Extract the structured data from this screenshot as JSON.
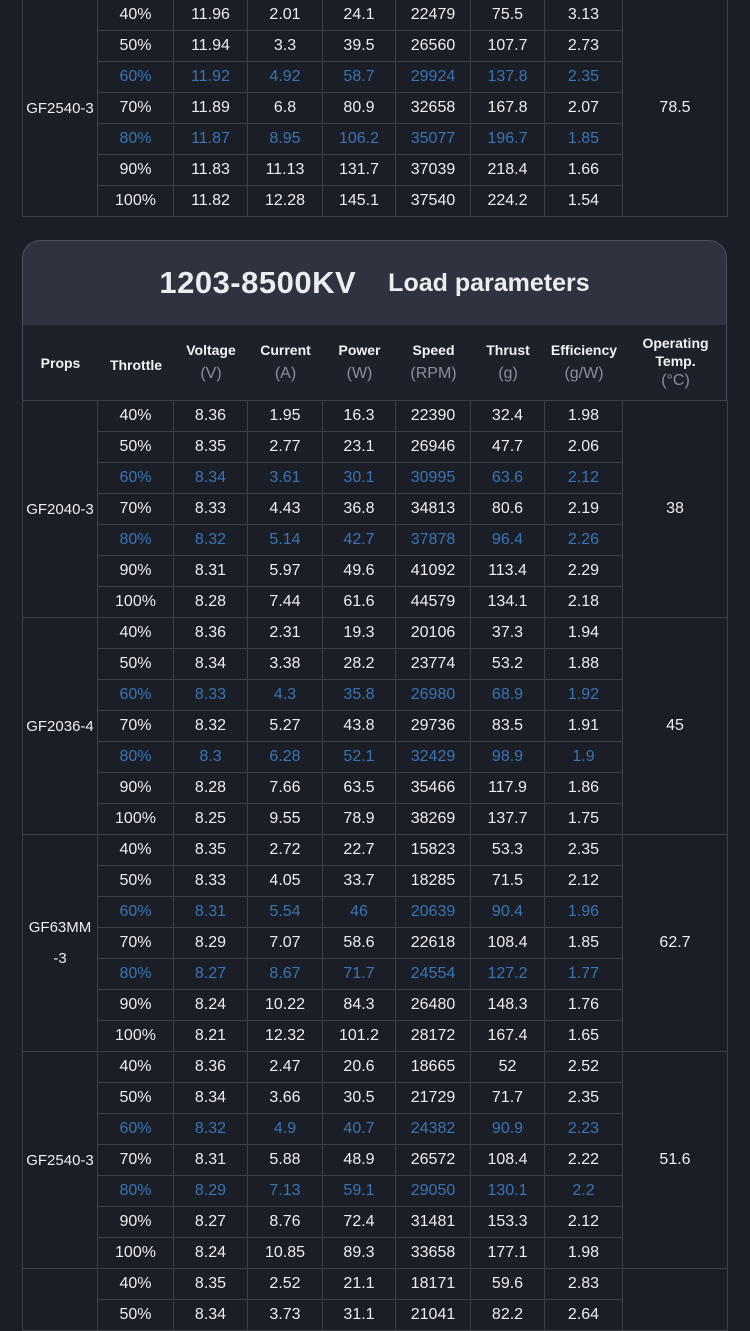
{
  "top_table": {
    "groups": [
      {
        "prop": "GF2540-3",
        "temp": "78.5",
        "rows": [
          {
            "throttle": "40%",
            "voltage": "11.96",
            "current": "2.01",
            "power": "24.1",
            "speed": "22479",
            "thrust": "75.5",
            "efficiency": "3.13",
            "hl": false
          },
          {
            "throttle": "50%",
            "voltage": "11.94",
            "current": "3.3",
            "power": "39.5",
            "speed": "26560",
            "thrust": "107.7",
            "efficiency": "2.73",
            "hl": false
          },
          {
            "throttle": "60%",
            "voltage": "11.92",
            "current": "4.92",
            "power": "58.7",
            "speed": "29924",
            "thrust": "137.8",
            "efficiency": "2.35",
            "hl": true
          },
          {
            "throttle": "70%",
            "voltage": "11.89",
            "current": "6.8",
            "power": "80.9",
            "speed": "32658",
            "thrust": "167.8",
            "efficiency": "2.07",
            "hl": false
          },
          {
            "throttle": "80%",
            "voltage": "11.87",
            "current": "8.95",
            "power": "106.2",
            "speed": "35077",
            "thrust": "196.7",
            "efficiency": "1.85",
            "hl": true
          },
          {
            "throttle": "90%",
            "voltage": "11.83",
            "current": "11.13",
            "power": "131.7",
            "speed": "37039",
            "thrust": "218.4",
            "efficiency": "1.66",
            "hl": false
          },
          {
            "throttle": "100%",
            "voltage": "11.82",
            "current": "12.28",
            "power": "145.1",
            "speed": "37540",
            "thrust": "224.2",
            "efficiency": "1.54",
            "hl": false
          }
        ]
      }
    ]
  },
  "panel": {
    "model": "1203-8500KV",
    "label": "Load parameters"
  },
  "columns": {
    "props": {
      "label": "Props",
      "unit": ""
    },
    "throttle": {
      "label": "Throttle",
      "unit": ""
    },
    "voltage": {
      "label": "Voltage",
      "unit": "(V)"
    },
    "current": {
      "label": "Current",
      "unit": "(A)"
    },
    "power": {
      "label": "Power",
      "unit": "(W)"
    },
    "speed": {
      "label": "Speed",
      "unit": "(RPM)"
    },
    "thrust": {
      "label": "Thrust",
      "unit": "(g)"
    },
    "efficiency": {
      "label": "Efficiency",
      "unit": "(g/W)"
    },
    "temp": {
      "label": "Operating Temp.",
      "unit": "(°C)"
    }
  },
  "main_table": {
    "groups": [
      {
        "prop": "GF2040-3",
        "temp": "38",
        "rows": [
          {
            "throttle": "40%",
            "voltage": "8.36",
            "current": "1.95",
            "power": "16.3",
            "speed": "22390",
            "thrust": "32.4",
            "efficiency": "1.98",
            "hl": false
          },
          {
            "throttle": "50%",
            "voltage": "8.35",
            "current": "2.77",
            "power": "23.1",
            "speed": "26946",
            "thrust": "47.7",
            "efficiency": "2.06",
            "hl": false
          },
          {
            "throttle": "60%",
            "voltage": "8.34",
            "current": "3.61",
            "power": "30.1",
            "speed": "30995",
            "thrust": "63.6",
            "efficiency": "2.12",
            "hl": true
          },
          {
            "throttle": "70%",
            "voltage": "8.33",
            "current": "4.43",
            "power": "36.8",
            "speed": "34813",
            "thrust": "80.6",
            "efficiency": "2.19",
            "hl": false
          },
          {
            "throttle": "80%",
            "voltage": "8.32",
            "current": "5.14",
            "power": "42.7",
            "speed": "37878",
            "thrust": "96.4",
            "efficiency": "2.26",
            "hl": true
          },
          {
            "throttle": "90%",
            "voltage": "8.31",
            "current": "5.97",
            "power": "49.6",
            "speed": "41092",
            "thrust": "113.4",
            "efficiency": "2.29",
            "hl": false
          },
          {
            "throttle": "100%",
            "voltage": "8.28",
            "current": "7.44",
            "power": "61.6",
            "speed": "44579",
            "thrust": "134.1",
            "efficiency": "2.18",
            "hl": false
          }
        ]
      },
      {
        "prop": "GF2036-4",
        "temp": "45",
        "rows": [
          {
            "throttle": "40%",
            "voltage": "8.36",
            "current": "2.31",
            "power": "19.3",
            "speed": "20106",
            "thrust": "37.3",
            "efficiency": "1.94",
            "hl": false
          },
          {
            "throttle": "50%",
            "voltage": "8.34",
            "current": "3.38",
            "power": "28.2",
            "speed": "23774",
            "thrust": "53.2",
            "efficiency": "1.88",
            "hl": false
          },
          {
            "throttle": "60%",
            "voltage": "8.33",
            "current": "4.3",
            "power": "35.8",
            "speed": "26980",
            "thrust": "68.9",
            "efficiency": "1.92",
            "hl": true
          },
          {
            "throttle": "70%",
            "voltage": "8.32",
            "current": "5.27",
            "power": "43.8",
            "speed": "29736",
            "thrust": "83.5",
            "efficiency": "1.91",
            "hl": false
          },
          {
            "throttle": "80%",
            "voltage": "8.3",
            "current": "6.28",
            "power": "52.1",
            "speed": "32429",
            "thrust": "98.9",
            "efficiency": "1.9",
            "hl": true
          },
          {
            "throttle": "90%",
            "voltage": "8.28",
            "current": "7.66",
            "power": "63.5",
            "speed": "35466",
            "thrust": "117.9",
            "efficiency": "1.86",
            "hl": false
          },
          {
            "throttle": "100%",
            "voltage": "8.25",
            "current": "9.55",
            "power": "78.9",
            "speed": "38269",
            "thrust": "137.7",
            "efficiency": "1.75",
            "hl": false
          }
        ]
      },
      {
        "prop": "GF63MM -3",
        "temp": "62.7",
        "rows": [
          {
            "throttle": "40%",
            "voltage": "8.35",
            "current": "2.72",
            "power": "22.7",
            "speed": "15823",
            "thrust": "53.3",
            "efficiency": "2.35",
            "hl": false
          },
          {
            "throttle": "50%",
            "voltage": "8.33",
            "current": "4.05",
            "power": "33.7",
            "speed": "18285",
            "thrust": "71.5",
            "efficiency": "2.12",
            "hl": false
          },
          {
            "throttle": "60%",
            "voltage": "8.31",
            "current": "5.54",
            "power": "46",
            "speed": "20639",
            "thrust": "90.4",
            "efficiency": "1.96",
            "hl": true
          },
          {
            "throttle": "70%",
            "voltage": "8.29",
            "current": "7.07",
            "power": "58.6",
            "speed": "22618",
            "thrust": "108.4",
            "efficiency": "1.85",
            "hl": false
          },
          {
            "throttle": "80%",
            "voltage": "8.27",
            "current": "8.67",
            "power": "71.7",
            "speed": "24554",
            "thrust": "127.2",
            "efficiency": "1.77",
            "hl": true
          },
          {
            "throttle": "90%",
            "voltage": "8.24",
            "current": "10.22",
            "power": "84.3",
            "speed": "26480",
            "thrust": "148.3",
            "efficiency": "1.76",
            "hl": false
          },
          {
            "throttle": "100%",
            "voltage": "8.21",
            "current": "12.32",
            "power": "101.2",
            "speed": "28172",
            "thrust": "167.4",
            "efficiency": "1.65",
            "hl": false
          }
        ]
      },
      {
        "prop": "GF2540-3",
        "temp": "51.6",
        "rows": [
          {
            "throttle": "40%",
            "voltage": "8.36",
            "current": "2.47",
            "power": "20.6",
            "speed": "18665",
            "thrust": "52",
            "efficiency": "2.52",
            "hl": false
          },
          {
            "throttle": "50%",
            "voltage": "8.34",
            "current": "3.66",
            "power": "30.5",
            "speed": "21729",
            "thrust": "71.7",
            "efficiency": "2.35",
            "hl": false
          },
          {
            "throttle": "60%",
            "voltage": "8.32",
            "current": "4.9",
            "power": "40.7",
            "speed": "24382",
            "thrust": "90.9",
            "efficiency": "2.23",
            "hl": true
          },
          {
            "throttle": "70%",
            "voltage": "8.31",
            "current": "5.88",
            "power": "48.9",
            "speed": "26572",
            "thrust": "108.4",
            "efficiency": "2.22",
            "hl": false
          },
          {
            "throttle": "80%",
            "voltage": "8.29",
            "current": "7.13",
            "power": "59.1",
            "speed": "29050",
            "thrust": "130.1",
            "efficiency": "2.2",
            "hl": true
          },
          {
            "throttle": "90%",
            "voltage": "8.27",
            "current": "8.76",
            "power": "72.4",
            "speed": "31481",
            "thrust": "153.3",
            "efficiency": "2.12",
            "hl": false
          },
          {
            "throttle": "100%",
            "voltage": "8.24",
            "current": "10.85",
            "power": "89.3",
            "speed": "33658",
            "thrust": "177.1",
            "efficiency": "1.98",
            "hl": false
          }
        ]
      },
      {
        "prop": "",
        "temp": "",
        "rows": [
          {
            "throttle": "40%",
            "voltage": "8.35",
            "current": "2.52",
            "power": "21.1",
            "speed": "18171",
            "thrust": "59.6",
            "efficiency": "2.83",
            "hl": false
          },
          {
            "throttle": "50%",
            "voltage": "8.34",
            "current": "3.73",
            "power": "31.1",
            "speed": "21041",
            "thrust": "82.2",
            "efficiency": "2.64",
            "hl": false
          }
        ]
      }
    ]
  }
}
